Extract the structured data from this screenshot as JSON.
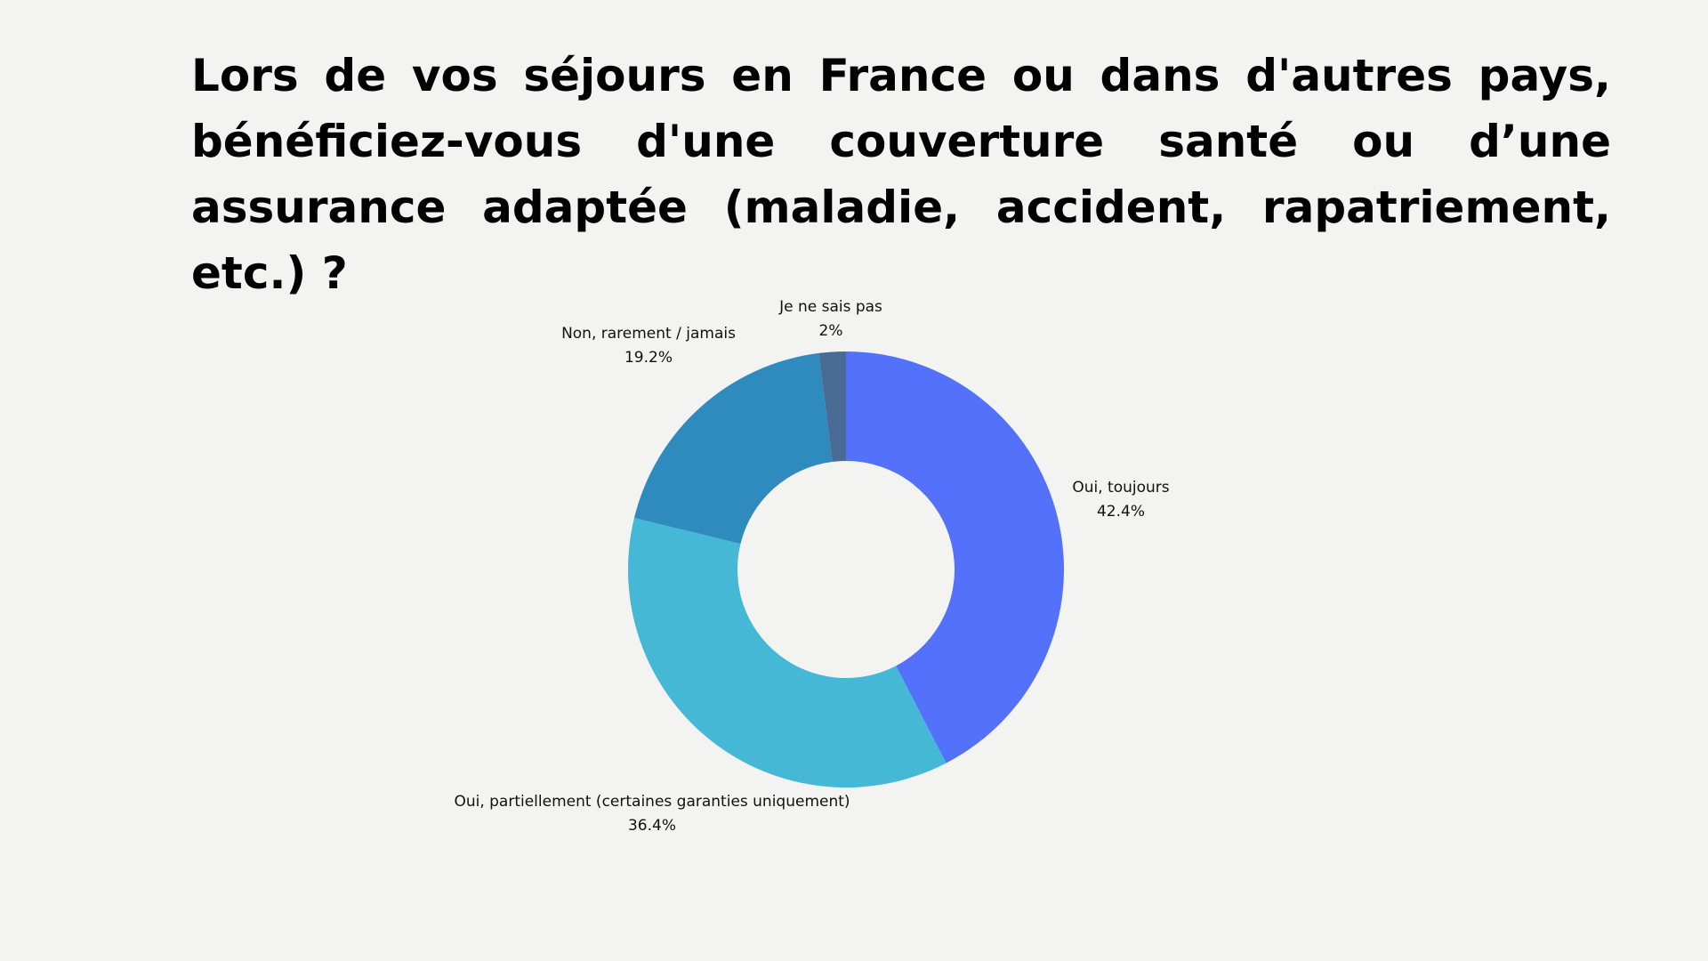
{
  "question": {
    "part1": "Lors de vos séjours en France ou dans d'autres pays,",
    "part2_bold": "bénéficiez-vous d'une couverture santé ou d’une assurance adaptée",
    "part3": "(maladie, accident, rapatriement, etc.) ?"
  },
  "chart_data": {
    "type": "pie",
    "donut": true,
    "title": "",
    "slices": [
      {
        "label": "Oui, toujours",
        "value": 42.4,
        "value_label": "42.4%",
        "color": "#5371fb"
      },
      {
        "label": "Oui, partiellement (certaines garanties uniquement)",
        "value": 36.4,
        "value_label": "36.4%",
        "color": "#44b8d5"
      },
      {
        "label": "Non, rarement / jamais",
        "value": 19.2,
        "value_label": "19.2%",
        "color": "#2f8bbd"
      },
      {
        "label": "Je ne sais pas",
        "value": 2,
        "value_label": "2%",
        "color": "#4a6b93"
      }
    ]
  }
}
